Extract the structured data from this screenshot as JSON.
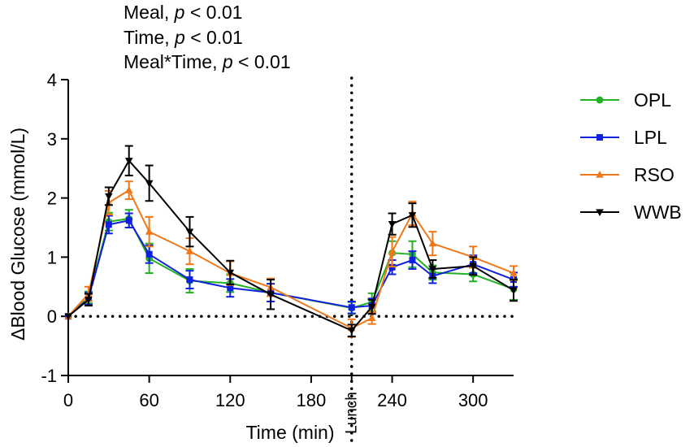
{
  "stats": [
    {
      "label": "Meal",
      "sep": ", ",
      "p": "p",
      "rest": " < 0.01"
    },
    {
      "label": "Time",
      "sep": ", ",
      "p": "p",
      "rest": " < 0.01"
    },
    {
      "label": "Meal*Time",
      "sep": ", ",
      "p": "p",
      "rest": " < 0.01"
    }
  ],
  "chart_data": {
    "type": "line",
    "xlabel": "Time (min)",
    "ylabel": "ΔBlood Glucose (mmol/L)",
    "xlim": [
      0,
      330
    ],
    "ylim": [
      -1,
      4
    ],
    "xticks": [
      0,
      60,
      120,
      180,
      240,
      300
    ],
    "yticks": [
      -1,
      0,
      1,
      2,
      3,
      4
    ],
    "vline": {
      "x": 210,
      "label": "Lunch"
    },
    "hline": {
      "y": 0
    },
    "series": [
      {
        "name": "OPL",
        "color": "#22b322",
        "marker": "circle",
        "x": [
          0,
          15,
          30,
          45,
          60,
          90,
          120,
          150,
          210,
          225,
          240,
          255,
          270,
          300,
          330
        ],
        "y": [
          0,
          0.32,
          1.6,
          1.65,
          0.98,
          0.6,
          0.56,
          0.4,
          0.14,
          0.24,
          1.07,
          1.05,
          0.74,
          0.71,
          0.46
        ],
        "err": [
          0,
          0.1,
          0.15,
          0.15,
          0.25,
          0.2,
          0.15,
          0.15,
          0.1,
          0.15,
          0.2,
          0.22,
          0.12,
          0.12,
          0.18
        ]
      },
      {
        "name": "LPL",
        "color": "#1020e0",
        "marker": "square",
        "x": [
          0,
          15,
          30,
          45,
          60,
          90,
          120,
          150,
          210,
          225,
          240,
          255,
          270,
          300,
          330
        ],
        "y": [
          0,
          0.3,
          1.55,
          1.62,
          1.05,
          0.62,
          0.48,
          0.4,
          0.15,
          0.18,
          0.83,
          0.95,
          0.68,
          0.88,
          0.62
        ],
        "err": [
          0,
          0.1,
          0.15,
          0.12,
          0.15,
          0.15,
          0.15,
          0.15,
          0.1,
          0.12,
          0.12,
          0.15,
          0.12,
          0.15,
          0.12
        ]
      },
      {
        "name": "RSO",
        "color": "#f07818",
        "marker": "triangle-up",
        "x": [
          0,
          15,
          30,
          45,
          60,
          90,
          120,
          150,
          210,
          225,
          240,
          255,
          270,
          300,
          330
        ],
        "y": [
          0,
          0.38,
          1.92,
          2.13,
          1.43,
          1.1,
          0.73,
          0.49,
          -0.2,
          -0.03,
          1.09,
          1.74,
          1.23,
          1.0,
          0.73
        ],
        "err": [
          0,
          0.12,
          0.2,
          0.15,
          0.25,
          0.22,
          0.2,
          0.15,
          0.15,
          0.1,
          0.25,
          0.2,
          0.2,
          0.18,
          0.12
        ]
      },
      {
        "name": "WWB",
        "color": "#000000",
        "marker": "triangle-down",
        "x": [
          0,
          15,
          30,
          45,
          60,
          90,
          120,
          150,
          210,
          225,
          240,
          255,
          270,
          300,
          330
        ],
        "y": [
          0,
          0.28,
          2.03,
          2.63,
          2.25,
          1.43,
          0.74,
          0.37,
          -0.24,
          0.16,
          1.56,
          1.71,
          0.8,
          0.85,
          0.44
        ],
        "err": [
          0,
          0.1,
          0.15,
          0.25,
          0.3,
          0.25,
          0.2,
          0.25,
          0.1,
          0.12,
          0.18,
          0.2,
          0.15,
          0.15,
          0.18
        ]
      }
    ]
  }
}
